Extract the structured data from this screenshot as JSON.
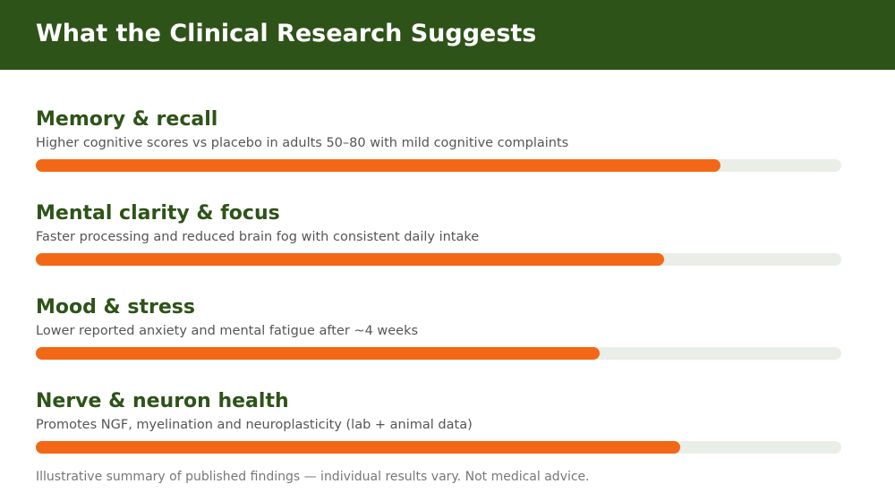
{
  "header": {
    "title": "What the Clinical Research Suggests"
  },
  "scale": [
    0,
    100
  ],
  "items": [
    {
      "title": "Memory & recall",
      "description": "Higher cognitive scores vs placebo in adults 50–80 with mild cognitive complaints",
      "value": 85
    },
    {
      "title": "Mental clarity & focus",
      "description": "Faster processing and reduced brain fog with consistent daily intake",
      "value": 78
    },
    {
      "title": "Mood & stress",
      "description": "Lower reported anxiety and mental fatigue after ~4 weeks",
      "value": 70
    },
    {
      "title": "Nerve & neuron health",
      "description": "Promotes NGF, myelination and neuroplasticity (lab + animal data)",
      "value": 80
    }
  ],
  "colors": {
    "header": "#2e5319",
    "bar": "#f26816",
    "track": "#e9eee7",
    "title": "#2e5319"
  },
  "footer": {
    "note": "Illustrative summary of published findings — individual results vary. Not medical advice."
  }
}
